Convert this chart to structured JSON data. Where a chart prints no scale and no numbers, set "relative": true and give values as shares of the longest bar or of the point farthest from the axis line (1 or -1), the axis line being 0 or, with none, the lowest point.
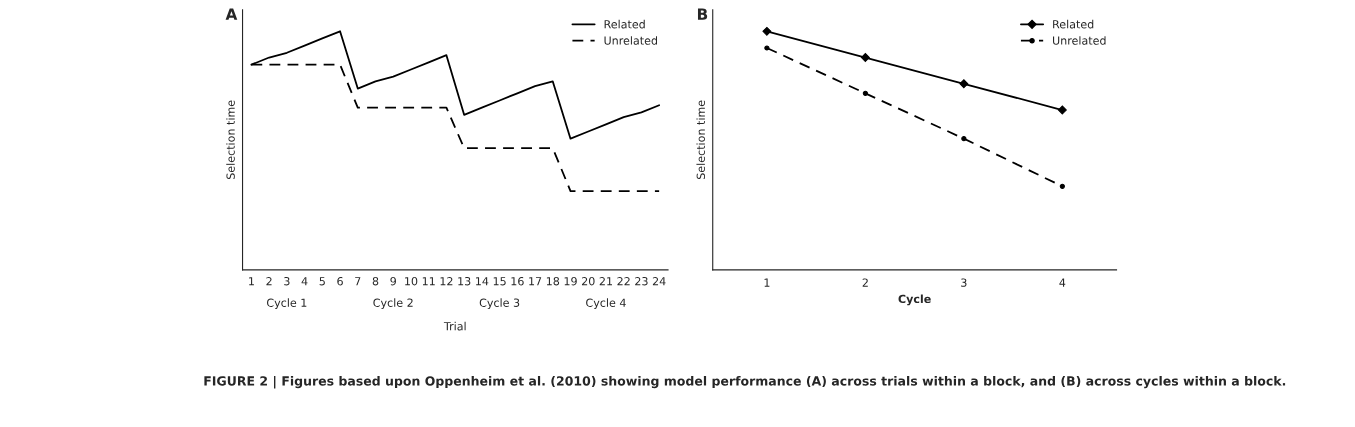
{
  "chart_data": [
    {
      "type": "line",
      "title": "A",
      "xlabel": "Trial",
      "ylabel": "Selection time",
      "relative": true,
      "legend": "top right",
      "grid": false,
      "categories": [
        "1",
        "2",
        "3",
        "4",
        "5",
        "6",
        "7",
        "8",
        "9",
        "10",
        "11",
        "12",
        "13",
        "14",
        "15",
        "16",
        "17",
        "18",
        "19",
        "20",
        "21",
        "22",
        "23",
        "24"
      ],
      "series": [
        {
          "name": "Related",
          "color": "#000000",
          "line_style": "solid",
          "marker": "none",
          "values": [
            0.86,
            0.89,
            0.91,
            0.94,
            0.97,
            1.0,
            0.76,
            0.79,
            0.81,
            0.84,
            0.87,
            0.9,
            0.65,
            0.68,
            0.71,
            0.74,
            0.77,
            0.79,
            0.55,
            0.58,
            0.61,
            0.64,
            0.66,
            0.69
          ]
        },
        {
          "name": "Unrelated",
          "color": "#000000",
          "line_style": "dashed",
          "marker": "none",
          "values": [
            0.86,
            0.86,
            0.86,
            0.86,
            0.86,
            0.86,
            0.68,
            0.68,
            0.68,
            0.68,
            0.68,
            0.68,
            0.51,
            0.51,
            0.51,
            0.51,
            0.51,
            0.51,
            0.33,
            0.33,
            0.33,
            0.33,
            0.33,
            0.33
          ]
        }
      ],
      "annotations": [
        "Cycle 1",
        "Cycle 2",
        "Cycle 3",
        "Cycle 4"
      ]
    },
    {
      "type": "line",
      "title": "B",
      "xlabel": "Cycle",
      "ylabel": "Selection time",
      "relative": true,
      "legend": "top right",
      "grid": false,
      "categories": [
        "1",
        "2",
        "3",
        "4"
      ],
      "series": [
        {
          "name": "Related",
          "color": "#000000",
          "line_style": "solid",
          "marker": "diamond",
          "values": [
            1.0,
            0.89,
            0.78,
            0.67
          ]
        },
        {
          "name": "Unrelated",
          "color": "#000000",
          "line_style": "dashed",
          "marker": "circle",
          "values": [
            0.93,
            0.74,
            0.55,
            0.35
          ]
        }
      ],
      "annotations": [
        "FIGURE 2 | Figures based upon Oppenheim et al. (2010) showing model performance (A) across trials within a block, and (B) across cycles within a block."
      ]
    }
  ]
}
